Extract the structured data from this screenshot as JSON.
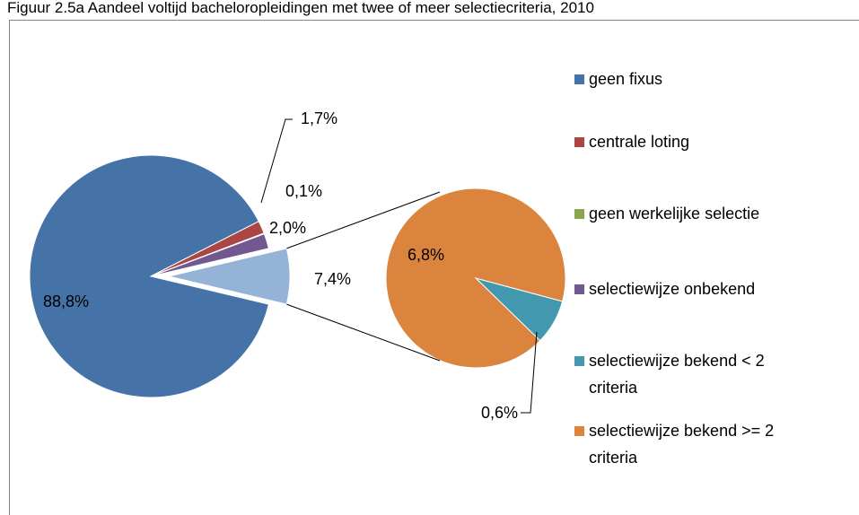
{
  "title": "Figuur 2.5a Aandeel voltijd bacheloropleidingen met twee of meer selectiecriteria, 2010",
  "chart_data": {
    "type": "pie-of-pie",
    "categories": [
      "geen fixus",
      "centrale loting",
      "geen werkelijke selectie",
      "selectiewijze onbekend",
      "selectiewijze bekend < 2 criteria",
      "selectiewijze bekend >= 2 criteria"
    ],
    "values": [
      88.8,
      1.7,
      0.1,
      2.0,
      0.6,
      6.8
    ],
    "value_labels": [
      "88,8%",
      "1,7%",
      "0,1%",
      "2,0%",
      "0,6%",
      "6,8%"
    ],
    "colors": [
      "#4572a7",
      "#aa4643",
      "#89a54e",
      "#71588f",
      "#4198af",
      "#db843d"
    ],
    "secondary_count": 2,
    "secondary_total": {
      "value": 7.4,
      "label": "7,4%",
      "color": "#95b3d7"
    },
    "legend": "right"
  }
}
